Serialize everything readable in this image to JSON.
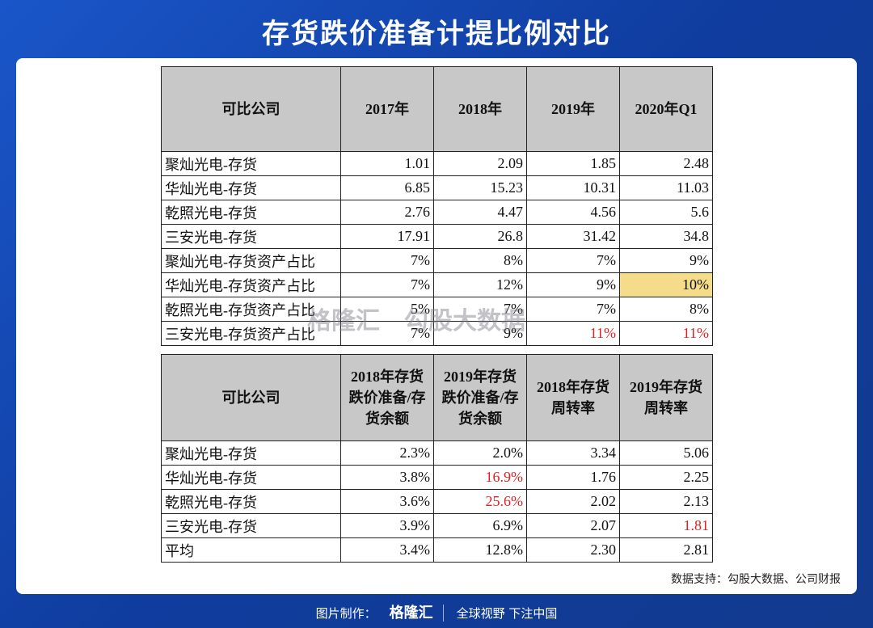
{
  "header": {
    "title": "存货跌价准备计提比例对比"
  },
  "table1": {
    "columns": [
      "可比公司",
      "2017年",
      "2018年",
      "2019年",
      "2020年Q1"
    ],
    "rows": [
      [
        "聚灿光电-存货",
        "1.01",
        "2.09",
        "1.85",
        "2.48"
      ],
      [
        "华灿光电-存货",
        "6.85",
        "15.23",
        "10.31",
        "11.03"
      ],
      [
        "乾照光电-存货",
        "2.76",
        "4.47",
        "4.56",
        "5.6"
      ],
      [
        "三安光电-存货",
        "17.91",
        "26.8",
        "31.42",
        "34.8"
      ],
      [
        "聚灿光电-存货资产占比",
        "7%",
        "8%",
        "7%",
        "9%"
      ],
      [
        "华灿光电-存货资产占比",
        "7%",
        "12%",
        "9%",
        "10%"
      ],
      [
        "乾照光电-存货资产占比",
        "5%",
        "7%",
        "7%",
        "8%"
      ],
      [
        "三安光电-存货资产占比",
        "7%",
        "9%",
        "11%",
        "11%"
      ]
    ]
  },
  "table2": {
    "columns": [
      "可比公司",
      "2018年存货跌价准备/存货余额",
      "2019年存货跌价准备/存货余额",
      "2018年存货周转率",
      "2019年存货周转率"
    ],
    "rows": [
      [
        "聚灿光电-存货",
        "2.3%",
        "2.0%",
        "3.34",
        "5.06"
      ],
      [
        "华灿光电-存货",
        "3.8%",
        "16.9%",
        "1.76",
        "2.25"
      ],
      [
        "乾照光电-存货",
        "3.6%",
        "25.6%",
        "2.02",
        "2.13"
      ],
      [
        "三安光电-存货",
        "3.9%",
        "6.9%",
        "2.07",
        "1.81"
      ],
      [
        "平均",
        "3.4%",
        "12.8%",
        "2.30",
        "2.81"
      ]
    ]
  },
  "watermark": {
    "brand": "格隆汇",
    "text": "勾股大数据"
  },
  "source": "数据支持：勾股大数据、公司财报",
  "footer": {
    "label": "图片制作：",
    "brand": "格隆汇",
    "slogan": "全球视野 下注中国"
  }
}
